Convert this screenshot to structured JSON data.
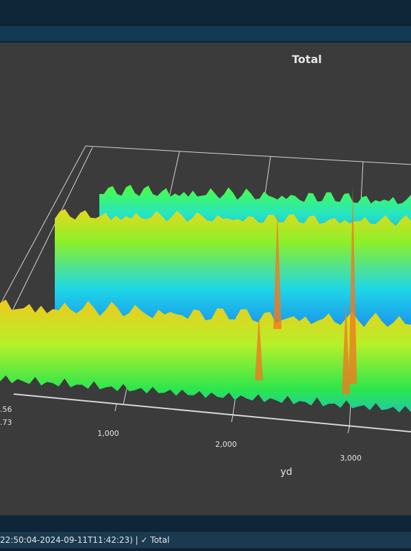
{
  "chart": {
    "title": "Total",
    "x_axis_label": "yd",
    "x_ticks": [
      "1,000",
      "2,000",
      "3,000"
    ],
    "z_ticks_partial": [
      ".56",
      ".73"
    ]
  },
  "status_bar": {
    "text": "22:50:04-2024-09-11T11:42:23) | ✓ Total"
  }
}
